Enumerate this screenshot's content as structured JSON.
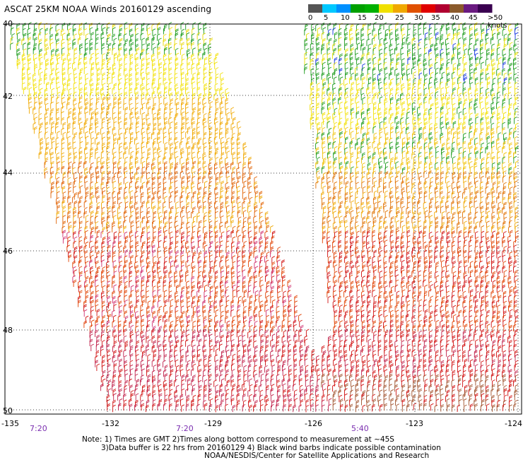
{
  "title": "ASCAT 25KM NOAA Winds 20160129 ascending",
  "legend": {
    "ticks": [
      "0",
      "5",
      "10",
      "15",
      "20",
      "25",
      "30",
      "35",
      "40",
      "45",
      ">50 knots"
    ],
    "colors": [
      "#555555",
      "#00c8ff",
      "#0090ff",
      "#00a000",
      "#00b000",
      "#f0e000",
      "#f0a800",
      "#e05000",
      "#e00000",
      "#b00030",
      "#8b5a2b",
      "#6a1a80",
      "#3a0050"
    ]
  },
  "lat_labels": [
    "40",
    "42",
    "44",
    "46",
    "48",
    "50"
  ],
  "lon_labels": [
    "-135",
    "-132",
    "-129",
    "-126",
    "-123",
    "-124"
  ],
  "time_labels": [
    "7:20",
    "7:20",
    "5:40"
  ],
  "notes": {
    "line1": "Note: 1) Times are GMT 2)Times along bottom correspond to measurement at ~45S",
    "line2": "3)Data buffer is 22 hrs from 20160129 4) Black wind barbs indicate possible contamination",
    "line3": "NOAA/NESDIS/Center for Satellite Applications and Research"
  }
}
